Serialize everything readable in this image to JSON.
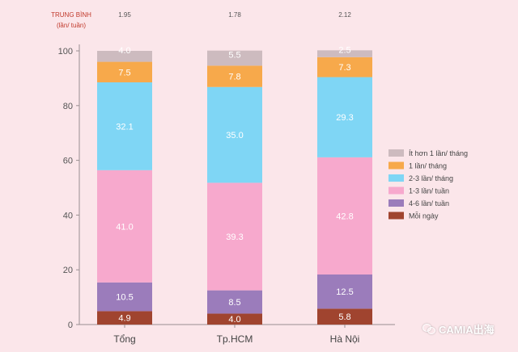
{
  "chart_data": {
    "type": "bar",
    "stacked": true,
    "categories": [
      "Tổng",
      "Tp.HCM",
      "Hà Nội"
    ],
    "ylim": [
      0,
      100
    ],
    "yticks": [
      0,
      20,
      40,
      60,
      80,
      100
    ],
    "average_header": {
      "line1": "TRUNG BÌNH",
      "line2": "(lần/ tuần)"
    },
    "averages": [
      "1.95",
      "1.78",
      "2.12"
    ],
    "legend_position": "right",
    "series": [
      {
        "name": "Mỗi ngày",
        "color": "#a0442f",
        "values": [
          4.9,
          4.0,
          5.8
        ]
      },
      {
        "name": "4-6 lần/ tuần",
        "color": "#9b7cbb",
        "values": [
          10.5,
          8.5,
          12.5
        ]
      },
      {
        "name": "1-3 lần/ tuần",
        "color": "#f7a9cd",
        "values": [
          41.0,
          39.3,
          42.8
        ]
      },
      {
        "name": "2-3 lần/ tháng",
        "color": "#7fd6f5",
        "values": [
          32.1,
          35.0,
          29.3
        ]
      },
      {
        "name": "1 lần/ tháng",
        "color": "#f7a94b",
        "values": [
          7.5,
          7.8,
          7.3
        ]
      },
      {
        "name": "Ít hơn 1 lần/ tháng",
        "color": "#cdbbbf",
        "values": [
          4.0,
          5.5,
          2.5
        ]
      }
    ]
  },
  "watermark": {
    "text": "CAMIA出海",
    "icon": "wechat-icon"
  }
}
